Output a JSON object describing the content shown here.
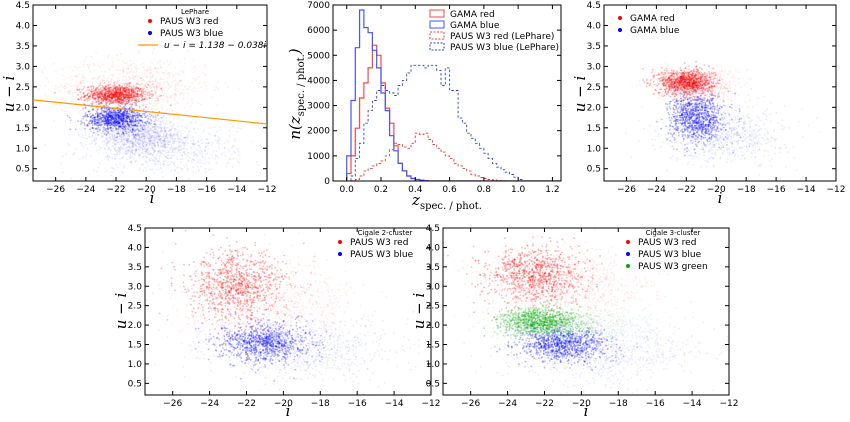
{
  "chart_data": [
    {
      "id": "p1",
      "type": "scatter",
      "title": "LePhare",
      "xlabel": "i",
      "ylabel": "u − i",
      "xlim": [
        -27.5,
        -12
      ],
      "ylim": [
        0.2,
        4.5
      ],
      "x_ticks": [
        "−26",
        "−24",
        "−22",
        "−20",
        "−18",
        "−16",
        "−14",
        "−12"
      ],
      "y_ticks": [
        "0.5",
        "1.0",
        "1.5",
        "2.0",
        "2.5",
        "3.0",
        "3.5",
        "4.0",
        "4.5"
      ],
      "legend": "upper-right",
      "series": [
        {
          "name": "PAUS W3 red",
          "color": "#ff0000",
          "clouds": [
            {
              "x": -22.0,
              "y": 2.3,
              "sx": 1.0,
              "sy": 0.12
            },
            {
              "x": -21.0,
              "y": 2.5,
              "sx": 2.5,
              "sy": 0.35
            }
          ]
        },
        {
          "name": "PAUS W3 blue",
          "color": "#0000ff",
          "clouds": [
            {
              "x": -22.0,
              "y": 1.72,
              "sx": 1.0,
              "sy": 0.15
            },
            {
              "x": -20.5,
              "y": 1.3,
              "sx": 1.4,
              "sy": 0.2
            },
            {
              "x": -19.0,
              "y": 1.0,
              "sx": 2.5,
              "sy": 0.3
            }
          ]
        },
        {
          "name": "u − i = 1.138 − 0.038i",
          "color": "#ff9900",
          "line": {
            "intercept": 1.138,
            "slope": -0.038
          }
        }
      ]
    },
    {
      "id": "p2",
      "type": "histogram",
      "xlabel": "z",
      "xlabel_sub": "spec. / phot.",
      "ylabel": "n(z",
      "ylabel_sub": "spec. / phot.",
      "ylabel_end": ")",
      "xlim": [
        -0.08,
        1.25
      ],
      "ylim": [
        0,
        7000
      ],
      "x_ticks": [
        "0.0",
        "0.2",
        "0.4",
        "0.6",
        "0.8",
        "1.0",
        "1.2"
      ],
      "y_ticks": [
        "0",
        "1000",
        "2000",
        "3000",
        "4000",
        "5000",
        "6000",
        "7000"
      ],
      "bin_start": 0.0,
      "bin_width": 0.025,
      "legend": "upper-right",
      "series": [
        {
          "name": "GAMA red",
          "color": "#ff4444",
          "dashed": false,
          "values": [
            300,
            1000,
            2100,
            3300,
            3900,
            4500,
            5400,
            5000,
            3900,
            2900,
            2300,
            1400,
            700,
            400,
            200,
            100,
            60,
            30,
            10,
            0,
            0,
            0,
            0,
            0,
            0,
            0,
            0,
            0,
            0,
            0,
            0,
            0,
            0,
            0,
            0,
            0,
            0,
            0,
            0,
            0,
            0,
            0,
            0,
            0,
            0,
            0,
            0,
            0,
            0,
            0
          ]
        },
        {
          "name": "GAMA blue",
          "color": "#4455ff",
          "dashed": false,
          "values": [
            1000,
            3200,
            5300,
            6800,
            6100,
            5900,
            5200,
            4500,
            3500,
            2800,
            1800,
            1200,
            700,
            400,
            200,
            100,
            60,
            30,
            10,
            0,
            0,
            0,
            0,
            0,
            0,
            0,
            0,
            0,
            0,
            0,
            0,
            0,
            0,
            0,
            0,
            0,
            0,
            0,
            0,
            0,
            0,
            0,
            0,
            0,
            0,
            0,
            0,
            0,
            0,
            0
          ]
        },
        {
          "name": "PAUS W3 red (LePhare)",
          "color": "#dd4433",
          "dashed": true,
          "values": [
            0,
            10,
            60,
            200,
            400,
            500,
            600,
            700,
            800,
            1000,
            1250,
            1500,
            1450,
            1350,
            1300,
            1500,
            1900,
            1850,
            1900,
            1650,
            1450,
            1300,
            1150,
            1000,
            900,
            700,
            600,
            500,
            400,
            250,
            200,
            140,
            100,
            60,
            40,
            20,
            10,
            0,
            0,
            0,
            0,
            0,
            0,
            0,
            0,
            0,
            0,
            0,
            0,
            0
          ]
        },
        {
          "name": "PAUS W3 blue (LePhare)",
          "color": "#3344cc",
          "dashed": true,
          "values": [
            0,
            200,
            900,
            1500,
            2300,
            2800,
            3200,
            3600,
            3800,
            3600,
            3500,
            3400,
            3800,
            4000,
            4300,
            4600,
            4600,
            4600,
            4500,
            4600,
            4600,
            4400,
            3800,
            4500,
            3600,
            3600,
            2500,
            2300,
            1900,
            1700,
            1500,
            1300,
            1100,
            900,
            700,
            550,
            450,
            350,
            260,
            150,
            60,
            0,
            0,
            0,
            0,
            0,
            0,
            0,
            0,
            0
          ]
        }
      ]
    },
    {
      "id": "p3",
      "type": "scatter",
      "xlim": [
        -27.5,
        -12
      ],
      "ylim": [
        0.2,
        4.5
      ],
      "xlabel": "i",
      "ylabel": "u − i",
      "x_ticks": [
        "−26",
        "−24",
        "−22",
        "−20",
        "−18",
        "−16",
        "−14",
        "−12"
      ],
      "y_ticks": [
        "0.5",
        "1.0",
        "1.5",
        "2.0",
        "2.5",
        "3.0",
        "3.5",
        "4.0",
        "4.5"
      ],
      "legend": "upper-left",
      "series": [
        {
          "name": "GAMA red",
          "color": "#ff0000",
          "clouds": [
            {
              "x": -22.0,
              "y": 2.62,
              "sx": 0.9,
              "sy": 0.15
            },
            {
              "x": -21.5,
              "y": 2.55,
              "sx": 1.3,
              "sy": 0.2
            }
          ]
        },
        {
          "name": "GAMA blue",
          "color": "#0000ff",
          "clouds": [
            {
              "x": -21.3,
              "y": 1.75,
              "sx": 0.9,
              "sy": 0.3
            },
            {
              "x": -19.5,
              "y": 1.35,
              "sx": 2.0,
              "sy": 0.35
            }
          ]
        }
      ]
    },
    {
      "id": "p4",
      "type": "scatter",
      "title": "Cigale 2-cluster",
      "xlim": [
        -27.5,
        -12
      ],
      "ylim": [
        0.2,
        4.5
      ],
      "xlabel": "i",
      "ylabel": "u − i",
      "x_ticks": [
        "−26",
        "−24",
        "−22",
        "−20",
        "−18",
        "−16",
        "−14",
        "−12"
      ],
      "y_ticks": [
        "0.5",
        "1.0",
        "1.5",
        "2.0",
        "2.5",
        "3.0",
        "3.5",
        "4.0",
        "4.5"
      ],
      "legend": "upper-right",
      "series": [
        {
          "name": "PAUS W3 red",
          "color": "#ff0000",
          "clouds": [
            {
              "x": -22.5,
              "y": 3.0,
              "sx": 1.3,
              "sy": 0.45
            },
            {
              "x": -21.0,
              "y": 2.6,
              "sx": 2.3,
              "sy": 0.55
            }
          ]
        },
        {
          "name": "PAUS W3 blue",
          "color": "#0000ff",
          "clouds": [
            {
              "x": -21.0,
              "y": 1.55,
              "sx": 1.2,
              "sy": 0.25
            },
            {
              "x": -19.0,
              "y": 1.4,
              "sx": 2.5,
              "sy": 0.4
            }
          ]
        }
      ]
    },
    {
      "id": "p5",
      "type": "scatter",
      "title": "Cigale 3-cluster",
      "xlim": [
        -27.5,
        -12
      ],
      "ylim": [
        0.2,
        4.5
      ],
      "xlabel": "i",
      "ylabel": "u − i",
      "x_ticks": [
        "−26",
        "−24",
        "−22",
        "−20",
        "−18",
        "−16",
        "−14",
        "−12"
      ],
      "y_ticks": [
        "0.5",
        "1.0",
        "1.5",
        "2.0",
        "2.5",
        "3.0",
        "3.5",
        "4.0",
        "4.5"
      ],
      "legend": "upper-right",
      "series": [
        {
          "name": "PAUS W3 red",
          "color": "#ff0000",
          "clouds": [
            {
              "x": -22.5,
              "y": 3.3,
              "sx": 1.3,
              "sy": 0.35
            },
            {
              "x": -20.8,
              "y": 3.0,
              "sx": 2.2,
              "sy": 0.45
            }
          ]
        },
        {
          "name": "PAUS W3 blue",
          "color": "#0000ff",
          "clouds": [
            {
              "x": -21.0,
              "y": 1.5,
              "sx": 1.2,
              "sy": 0.22
            },
            {
              "x": -19.0,
              "y": 1.35,
              "sx": 2.5,
              "sy": 0.38
            }
          ]
        },
        {
          "name": "PAUS W3 green",
          "color": "#00aa00",
          "clouds": [
            {
              "x": -22.3,
              "y": 2.1,
              "sx": 1.1,
              "sy": 0.18
            },
            {
              "x": -20.8,
              "y": 2.0,
              "sx": 2.0,
              "sy": 0.25
            }
          ]
        }
      ]
    }
  ]
}
